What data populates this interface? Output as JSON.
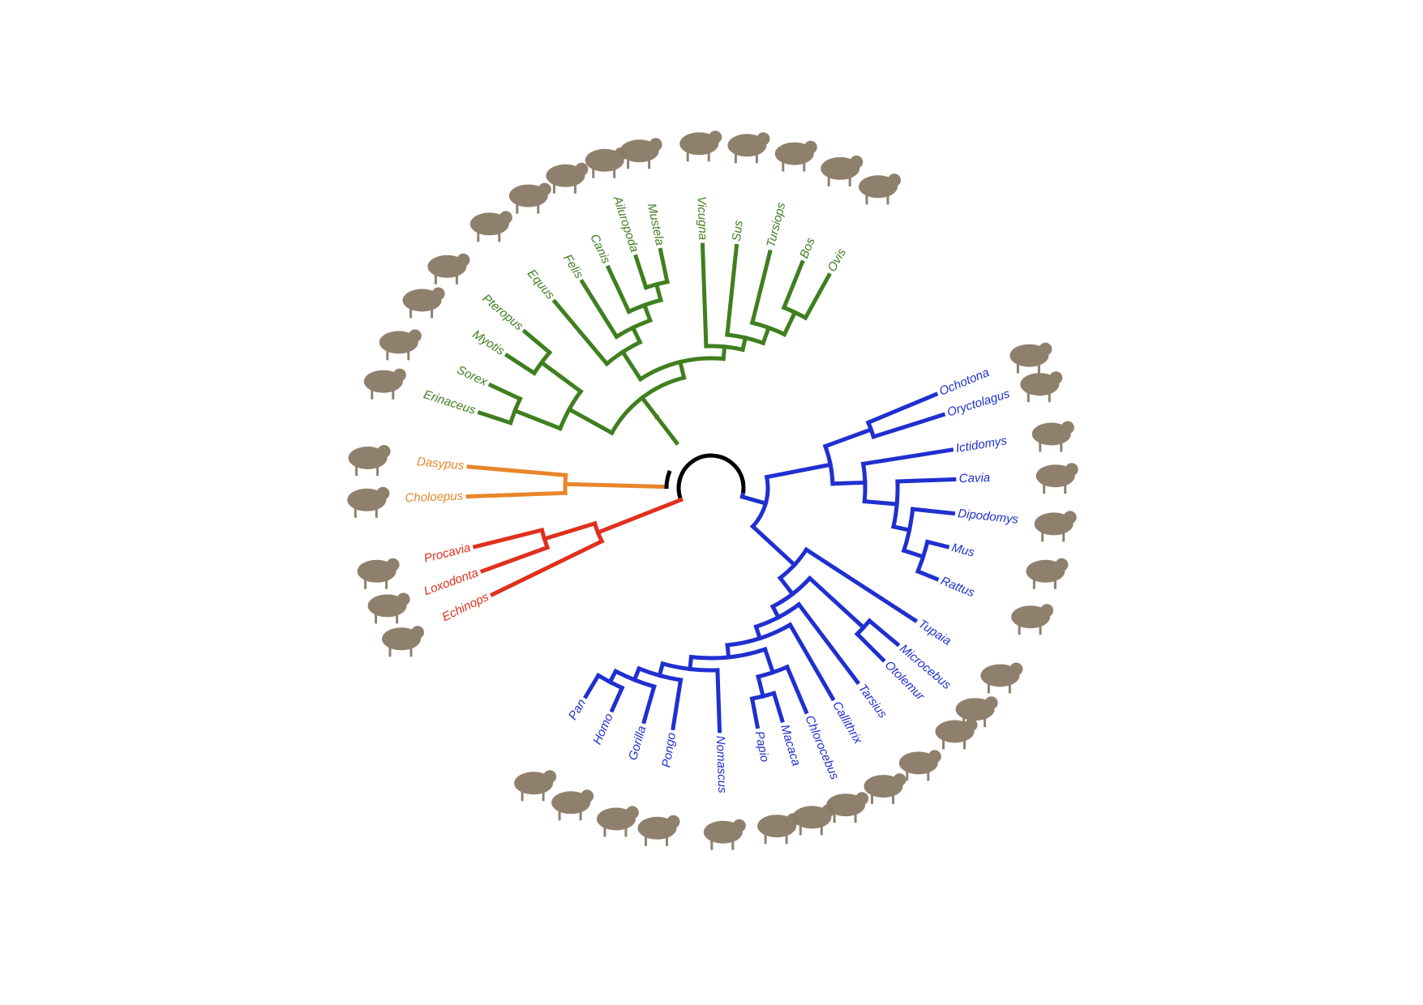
{
  "colors": {
    "afrotheria": "#e0301e",
    "xenarthra": "#e8862a",
    "laurasiatheria": "#3f7f1f",
    "euarchontoglires": "#1f2fd0",
    "root": "#000000",
    "animal_fill": "#8a7a66"
  },
  "clades": {
    "afrotheria": {
      "color_key": "afrotheria",
      "taxa": [
        "Procavia",
        "Loxodonta",
        "Echinops"
      ]
    },
    "xenarthra": {
      "color_key": "xenarthra",
      "taxa": [
        "Choloepus",
        "Dasypus"
      ]
    },
    "laurasiatheria": {
      "color_key": "laurasiatheria",
      "taxa": [
        "Erinaceus",
        "Sorex",
        "Myotis",
        "Pteropus",
        "Equus",
        "Felis",
        "Canis",
        "Ailuropoda",
        "Mustela",
        "Vicugna",
        "Sus",
        "Tursiops",
        "Bos",
        "Ovis"
      ]
    },
    "euarchontoglires": {
      "color_key": "euarchontoglires",
      "taxa": [
        "Ochotona",
        "Oryctolagus",
        "Ictidomys",
        "Cavia",
        "Dipodomys",
        "Mus",
        "Rattus",
        "Tupaia",
        "Microcebus",
        "Otolemur",
        "Tarsius",
        "Callithrix",
        "Chlorocebus",
        "Macaca",
        "Papio",
        "Nomascus",
        "Pongo",
        "Gorilla",
        "Homo",
        "Pan"
      ]
    }
  },
  "animal_icons": [
    "hyrax-icon",
    "elephant-icon",
    "tenrec-icon",
    "sloth-icon",
    "armadillo-icon",
    "hedgehog-icon",
    "shrew-icon",
    "bat-icon",
    "fruit-bat-icon",
    "horse-icon",
    "cat-icon",
    "dog-icon",
    "panda-icon",
    "ferret-icon",
    "alpaca-icon",
    "boar-icon",
    "dolphin-icon",
    "cow-icon",
    "sheep-icon",
    "pika-icon",
    "rabbit-icon",
    "squirrel-icon",
    "guinea-pig-icon",
    "kangaroo-rat-icon",
    "mouse-icon",
    "rat-icon",
    "tree-shrew-icon",
    "mouse-lemur-icon",
    "galago-icon",
    "tarsier-icon",
    "marmoset-icon",
    "vervet-icon",
    "macaque-icon",
    "baboon-icon",
    "gibbon-icon",
    "orangutan-icon",
    "gorilla-icon",
    "human-icon",
    "chimpanzee-icon"
  ]
}
